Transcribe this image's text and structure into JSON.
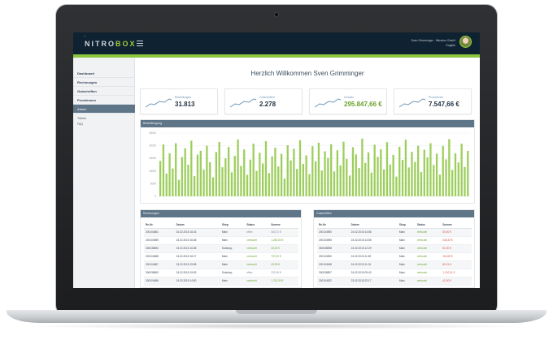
{
  "header": {
    "logo_left": "NITRO",
    "logo_right": "BOX",
    "logo_sup": "i",
    "user_name": "Sven Grimminger - Nitrobox GmbH",
    "user_lang": "English"
  },
  "sidebar": {
    "items": [
      {
        "label": "Dashboard"
      },
      {
        "label": "Rechnungen"
      },
      {
        "label": "Gutschriften"
      },
      {
        "label": "Provisionen"
      },
      {
        "label": "Admin"
      }
    ],
    "sub_items": [
      {
        "label": "Tickets"
      },
      {
        "label": "FAQ"
      }
    ]
  },
  "welcome": "Herzlich Willkommen Sven Grimminger",
  "stats": [
    {
      "label": "Bestellungen",
      "value": "31.813"
    },
    {
      "label": "Gutschriften",
      "value": "2.278"
    },
    {
      "label": "Umsatz",
      "value": "295.847,66 €"
    },
    {
      "label": "Provisionen",
      "value": "7.547,66 €"
    }
  ],
  "chart_panel_title": "Bestelleingang",
  "chart_data": {
    "type": "bar",
    "title": "Bestelleingang",
    "xlabel": "",
    "ylabel": "",
    "ylim": [
      0,
      25000
    ],
    "yticks": [
      "0",
      "5000",
      "10000",
      "15000",
      "20000",
      "25000"
    ],
    "grid": true,
    "series": [
      {
        "values": [
          14000,
          20500,
          9000,
          17000,
          11000,
          21000,
          6500,
          15500,
          19000,
          12500,
          22000,
          8000,
          16500,
          18000,
          10500,
          20000,
          13500,
          7500,
          17500,
          21500,
          11500,
          15000,
          19500,
          9500,
          16000,
          22500,
          12000,
          18500,
          8500,
          14500,
          20800,
          10000,
          17200,
          13000,
          21800,
          9200,
          15800,
          19200,
          11800,
          16800,
          7000,
          20200,
          14200,
          18800,
          10800,
          22200,
          12800,
          16200,
          8800,
          19800,
          13800,
          21200,
          10200,
          17800,
          15200,
          20600,
          9800,
          18200,
          12200,
          21600,
          14800,
          8200,
          19400,
          16600,
          11200,
          22800,
          13200,
          17400,
          9400,
          20400,
          15600,
          18600,
          10600,
          21400,
          12600,
          16400,
          7800,
          19600,
          14400,
          22400,
          11400,
          17600,
          13600,
          20000,
          9600,
          18400,
          15400,
          21000,
          12400,
          16900,
          8600,
          19900,
          14600,
          22600,
          10400,
          17000,
          13400,
          20800,
          11600,
          18000
        ]
      }
    ]
  },
  "table_left": {
    "title": "Rechnungen",
    "headers": [
      "Re-Nr.",
      "Datum",
      "Shop",
      "Status",
      "Summe"
    ],
    "rows": [
      {
        "nr": "200104661",
        "date": "24.02.2015 16:43",
        "shop": "Main",
        "status": "offen",
        "sum": "343,71 €"
      },
      {
        "nr": "200104659",
        "date": "24.02.2015 16:38",
        "shop": "Main",
        "status": "verbucht",
        "sum": "1.260,53 €"
      },
      {
        "nr": "300038694",
        "date": "24.02.2015 16:38",
        "shop": "Subshop",
        "status": "verbucht",
        "sum": "42,52 €"
      },
      {
        "nr": "200104658",
        "date": "24.02.2015 16:17",
        "shop": "Main",
        "status": "verbucht",
        "sum": "737,00 €"
      },
      {
        "nr": "200104657",
        "date": "24.02.2015 15:58",
        "shop": "Main",
        "status": "verbucht",
        "sum": "43,99 €"
      },
      {
        "nr": "300038693",
        "date": "24.02.2015 15:53",
        "shop": "Subshop",
        "status": "offen",
        "sum": "222,19 €"
      },
      {
        "nr": "200104656",
        "date": "24.02.2015 14:50",
        "shop": "Main",
        "status": "verbucht",
        "sum": "1.742,00 €"
      }
    ]
  },
  "table_right": {
    "title": "Gutschriften",
    "headers": [
      "Re-Nr.",
      "Datum",
      "Shop",
      "Status",
      "Summe"
    ],
    "rows": [
      {
        "nr": "200104950",
        "date": "24.02.2015 14:58",
        "shop": "Main",
        "status": "verbucht",
        "sum": "50,00 €"
      },
      {
        "nr": "200104955",
        "date": "24.02.2015 14:55",
        "shop": "Main",
        "status": "verbucht",
        "sum": "348,33 €"
      },
      {
        "nr": "300038598",
        "date": "24.02.2015 12:29",
        "shop": "Main",
        "status": "verbucht",
        "sum": "84,00 €"
      },
      {
        "nr": "200104950",
        "date": "24.02.2015 11:52",
        "shop": "Main",
        "status": "verbucht",
        "sum": "116,80 €"
      },
      {
        "nr": "200104948",
        "date": "24.02.2015 11:31",
        "shop": "Main",
        "status": "verbucht",
        "sum": "80,21 €"
      },
      {
        "nr": "300038597",
        "date": "24.02.2015 09:43",
        "shop": "Main",
        "status": "verbucht",
        "sum": "1.210,01 €"
      },
      {
        "nr": "200104922",
        "date": "23.02.2015 22:17",
        "shop": "Main",
        "status": "verbucht",
        "sum": "42,00 €"
      }
    ]
  },
  "colors": {
    "accent_green": "#8cc63f",
    "header_dark": "#0f2231",
    "panel_head": "#5f7588",
    "negative_red": "#d9534f"
  }
}
